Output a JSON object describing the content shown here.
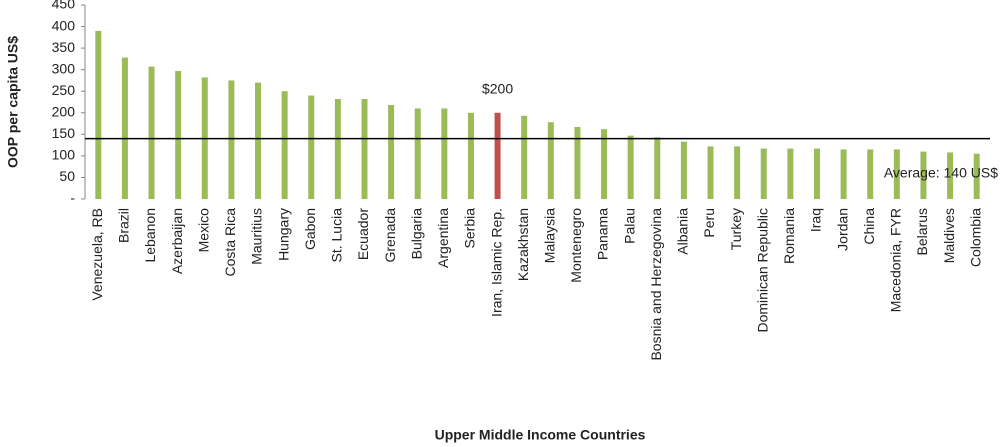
{
  "chart_data": {
    "type": "bar",
    "y_axis_label": "OOP per capita US$",
    "x_axis_label": "Upper Middle Income Countries",
    "categories": [
      "Venezuela, RB",
      "Brazil",
      "Lebanon",
      "Azerbaijan",
      "Mexico",
      "Costa Rica",
      "Mauritius",
      "Hungary",
      "Gabon",
      "St. Lucia",
      "Ecuador",
      "Grenada",
      "Bulgaria",
      "Argentina",
      "Serbia",
      "Iran, Islamic Rep.",
      "Kazakhstan",
      "Malaysia",
      "Montenegro",
      "Panama",
      "Palau",
      "Bosnia and Herzegovina",
      "Albania",
      "Peru",
      "Turkey",
      "Dominican Republic",
      "Romania",
      "Iraq",
      "Jordan",
      "China",
      "Macedonia, FYR",
      "Belarus",
      "Maldives",
      "Colombia"
    ],
    "values": [
      390,
      328,
      307,
      297,
      282,
      275,
      270,
      250,
      240,
      232,
      232,
      218,
      210,
      210,
      200,
      200,
      193,
      178,
      167,
      162,
      147,
      143,
      133,
      122,
      122,
      117,
      117,
      117,
      115,
      115,
      115,
      110,
      108,
      105
    ],
    "colors": [
      "#9bbb59",
      "#9bbb59",
      "#9bbb59",
      "#9bbb59",
      "#9bbb59",
      "#9bbb59",
      "#9bbb59",
      "#9bbb59",
      "#9bbb59",
      "#9bbb59",
      "#9bbb59",
      "#9bbb59",
      "#9bbb59",
      "#9bbb59",
      "#9bbb59",
      "#c0504d",
      "#9bbb59",
      "#9bbb59",
      "#9bbb59",
      "#9bbb59",
      "#9bbb59",
      "#9bbb59",
      "#9bbb59",
      "#9bbb59",
      "#9bbb59",
      "#9bbb59",
      "#9bbb59",
      "#9bbb59",
      "#9bbb59",
      "#9bbb59",
      "#9bbb59",
      "#9bbb59",
      "#9bbb59",
      "#9bbb59"
    ],
    "ylim": [
      0,
      450
    ],
    "yticks": [
      {
        "value": 0,
        "label": "-"
      },
      50,
      100,
      150,
      200,
      250,
      300,
      350,
      400,
      450
    ],
    "average": 140,
    "average_label": "Average: 140 US$",
    "highlight_label": "$200"
  }
}
